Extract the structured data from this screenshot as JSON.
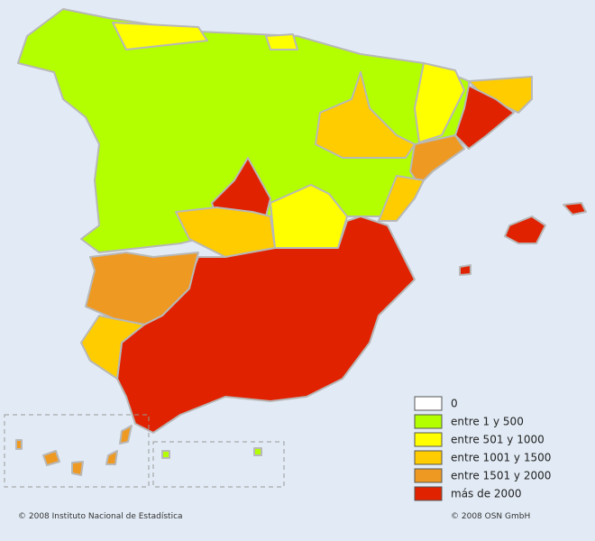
{
  "legend": {
    "items": [
      {
        "label": "0",
        "color": "#ffffff"
      },
      {
        "label": "entre 1 y 500",
        "color": "#b3ff00"
      },
      {
        "label": "entre 501 y 1000",
        "color": "#ffff00"
      },
      {
        "label": "entre 1001 y 1500",
        "color": "#ffcc00"
      },
      {
        "label": "entre 1501 y 2000",
        "color": "#ee9922"
      },
      {
        "label": "más de 2000",
        "color": "#e02200"
      }
    ]
  },
  "credits": {
    "left": "© 2008 Instituto Nacional de Estadística",
    "right": "© 2008 OSN GmbH"
  }
}
